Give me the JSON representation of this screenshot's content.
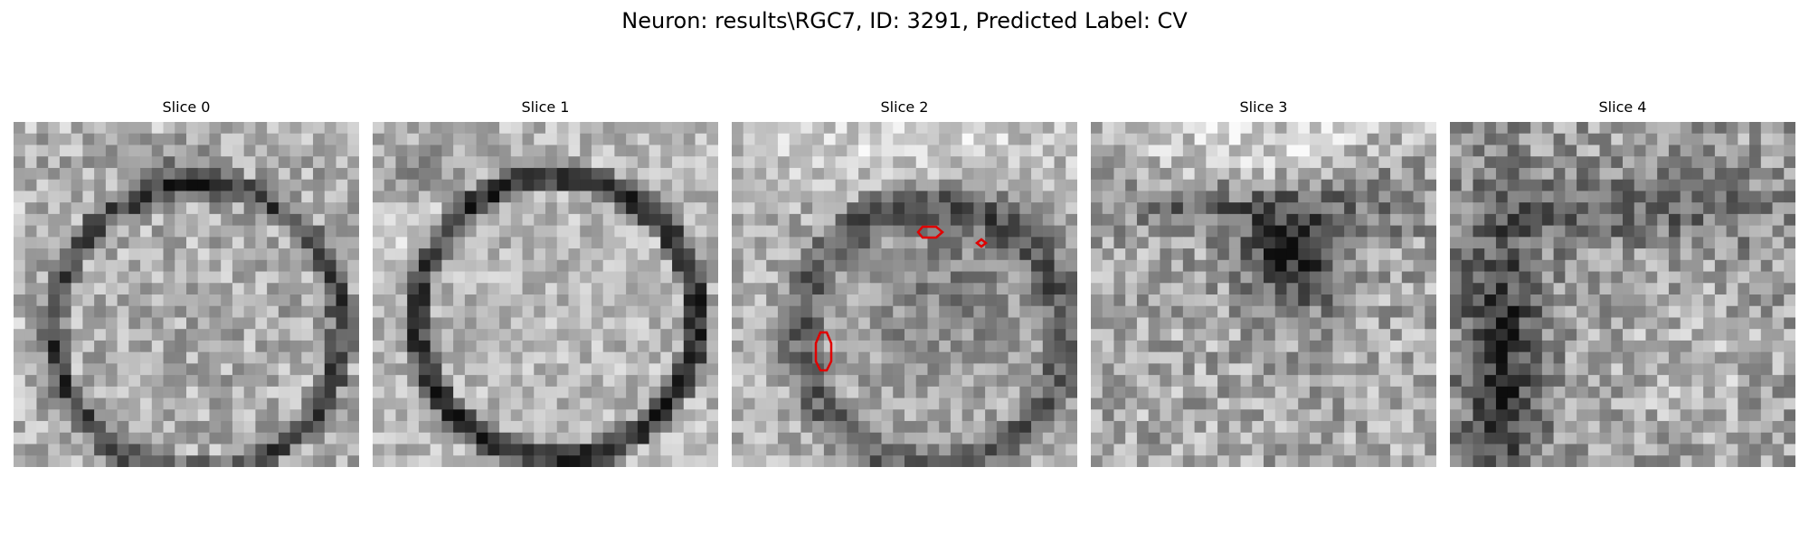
{
  "figure": {
    "title": "Neuron: results\\RGC7, ID: 3291, Predicted Label: CV"
  },
  "slices": [
    {
      "title": "Slice 0",
      "pattern": "ring",
      "markers": 0
    },
    {
      "title": "Slice 1",
      "pattern": "dark-ring",
      "markers": 0
    },
    {
      "title": "Slice 2",
      "pattern": "ring-with-detections",
      "markers": 3
    },
    {
      "title": "Slice 3",
      "pattern": "dark-funnel",
      "markers": 0
    },
    {
      "title": "Slice 4",
      "pattern": "dark-streak",
      "markers": 0
    }
  ],
  "colors": {
    "marker": "#e00000",
    "background": "#ffffff",
    "text": "#000000"
  }
}
